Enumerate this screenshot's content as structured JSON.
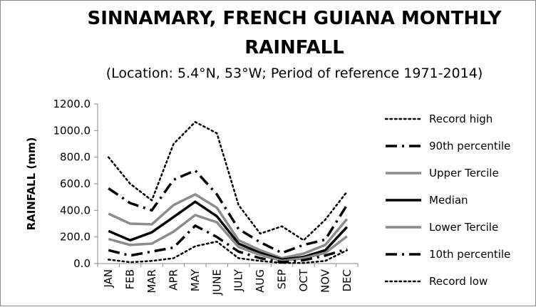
{
  "chart_data": {
    "type": "line",
    "title_line1": "SINNAMARY, FRENCH GUIANA MONTHLY",
    "title_line2": "RAINFALL",
    "subtitle": "(Location: 5.4°N, 53°W; Period of reference 1971-2014)",
    "xlabel": "",
    "ylabel": "RAINFALL (mm)",
    "ylim": [
      0,
      1200
    ],
    "yticks": [
      "0.0",
      "200.0",
      "400.0",
      "600.0",
      "800.0",
      "1000.0",
      "1200.0"
    ],
    "categories": [
      "JAN",
      "FEB",
      "MAR",
      "APR",
      "MAY",
      "JUNE",
      "JULY",
      "AUG",
      "SEP",
      "OCT",
      "NOV",
      "DEC"
    ],
    "grid": false,
    "legend_position": "right",
    "series": [
      {
        "name": "Record high",
        "style": "dotted",
        "color": "#000000",
        "values": [
          800,
          600,
          475,
          900,
          1065,
          980,
          440,
          225,
          280,
          175,
          330,
          540
        ]
      },
      {
        "name": "90th percentile",
        "style": "dashdot",
        "color": "#000000",
        "values": [
          565,
          455,
          400,
          630,
          700,
          520,
          260,
          160,
          80,
          140,
          180,
          440
        ]
      },
      {
        "name": "Upper Tercile",
        "style": "solid",
        "color": "#8c8c8c",
        "values": [
          375,
          300,
          295,
          440,
          520,
          420,
          175,
          100,
          40,
          75,
          140,
          335
        ]
      },
      {
        "name": "Median",
        "style": "solid",
        "color": "#000000",
        "values": [
          245,
          175,
          235,
          350,
          465,
          355,
          150,
          80,
          30,
          50,
          100,
          275
        ]
      },
      {
        "name": "Lower Tercile",
        "style": "solid",
        "color": "#8c8c8c",
        "values": [
          185,
          140,
          150,
          240,
          365,
          310,
          125,
          65,
          20,
          40,
          80,
          205
        ]
      },
      {
        "name": "10th percentile",
        "style": "dashdot",
        "color": "#000000",
        "values": [
          100,
          60,
          90,
          120,
          285,
          200,
          90,
          40,
          10,
          25,
          60,
          110
        ]
      },
      {
        "name": "Record low",
        "style": "dotted",
        "color": "#000000",
        "values": [
          30,
          10,
          20,
          40,
          130,
          165,
          40,
          20,
          5,
          5,
          20,
          100
        ]
      }
    ]
  }
}
